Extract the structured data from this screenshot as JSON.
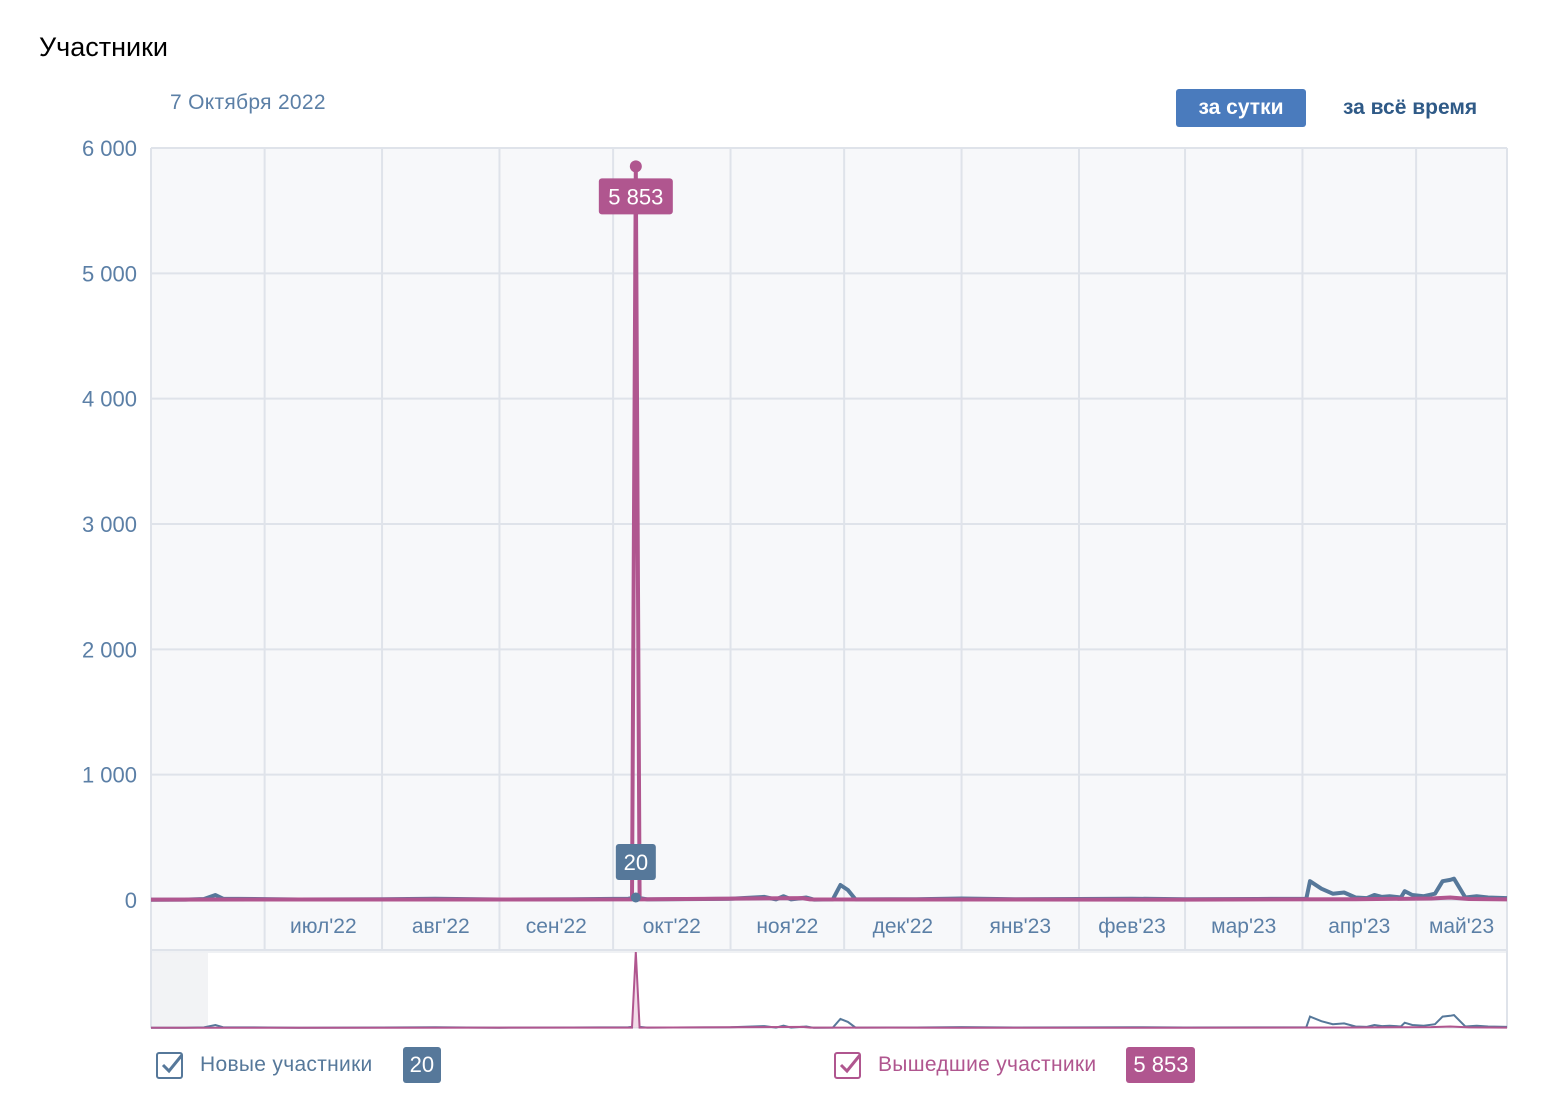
{
  "page": {
    "title": "Участники",
    "selected_date": "7 Октября 2022",
    "range_buttons": {
      "daily": "за сутки",
      "all_time": "за всё время"
    }
  },
  "legend": {
    "new_members": {
      "label": "Новые участники",
      "value": "20"
    },
    "left_members": {
      "label": "Вышедшие участники",
      "value": "5 853"
    }
  },
  "colors": {
    "new_members": "#56789a",
    "left_members": "#b0568f",
    "accent": "#4a7bbd",
    "tick_text": "#5b7fa6"
  },
  "chart_data": {
    "type": "line",
    "ylim": [
      0,
      6000
    ],
    "yticks": [
      0,
      1000,
      2000,
      3000,
      4000,
      5000,
      6000
    ],
    "ytick_labels": [
      "0",
      "1 000",
      "2 000",
      "3 000",
      "4 000",
      "5 000",
      "6 000"
    ],
    "x_range": [
      "2022-06-01",
      "2023-05-25"
    ],
    "month_ticks": [
      {
        "date": "2022-07-01",
        "label": "июл'22"
      },
      {
        "date": "2022-08-01",
        "label": "авг'22"
      },
      {
        "date": "2022-09-01",
        "label": "сен'22"
      },
      {
        "date": "2022-10-01",
        "label": "окт'22"
      },
      {
        "date": "2022-11-01",
        "label": "ноя'22"
      },
      {
        "date": "2022-12-01",
        "label": "дек'22"
      },
      {
        "date": "2023-01-01",
        "label": "янв'23"
      },
      {
        "date": "2023-02-01",
        "label": "фев'23"
      },
      {
        "date": "2023-03-01",
        "label": "мар'23"
      },
      {
        "date": "2023-04-01",
        "label": "апр'23"
      },
      {
        "date": "2023-05-01",
        "label": "май'23"
      }
    ],
    "highlight": {
      "date": "2022-10-07",
      "new_members": 20,
      "left_members": 5853,
      "new_label": "20",
      "left_label": "5 853"
    },
    "series": [
      {
        "name": "Новые участники",
        "points": [
          [
            "2022-06-01",
            2
          ],
          [
            "2022-06-10",
            3
          ],
          [
            "2022-06-15",
            8
          ],
          [
            "2022-06-18",
            40
          ],
          [
            "2022-06-20",
            10
          ],
          [
            "2022-07-10",
            4
          ],
          [
            "2022-08-01",
            6
          ],
          [
            "2022-08-15",
            10
          ],
          [
            "2022-09-01",
            4
          ],
          [
            "2022-09-20",
            6
          ],
          [
            "2022-10-05",
            10
          ],
          [
            "2022-10-07",
            20
          ],
          [
            "2022-10-10",
            5
          ],
          [
            "2022-10-25",
            8
          ],
          [
            "2022-11-01",
            10
          ],
          [
            "2022-11-10",
            25
          ],
          [
            "2022-11-13",
            5
          ],
          [
            "2022-11-15",
            30
          ],
          [
            "2022-11-17",
            5
          ],
          [
            "2022-11-21",
            20
          ],
          [
            "2022-11-23",
            3
          ],
          [
            "2022-11-28",
            5
          ],
          [
            "2022-11-30",
            120
          ],
          [
            "2022-12-02",
            80
          ],
          [
            "2022-12-04",
            5
          ],
          [
            "2022-12-20",
            6
          ],
          [
            "2023-01-01",
            12
          ],
          [
            "2023-01-15",
            6
          ],
          [
            "2023-02-01",
            8
          ],
          [
            "2023-02-15",
            10
          ],
          [
            "2023-03-01",
            6
          ],
          [
            "2023-03-20",
            8
          ],
          [
            "2023-04-02",
            10
          ],
          [
            "2023-04-03",
            150
          ],
          [
            "2023-04-06",
            90
          ],
          [
            "2023-04-09",
            50
          ],
          [
            "2023-04-12",
            60
          ],
          [
            "2023-04-15",
            20
          ],
          [
            "2023-04-18",
            15
          ],
          [
            "2023-04-20",
            40
          ],
          [
            "2023-04-22",
            25
          ],
          [
            "2023-04-24",
            30
          ],
          [
            "2023-04-27",
            20
          ],
          [
            "2023-04-28",
            70
          ],
          [
            "2023-04-30",
            40
          ],
          [
            "2023-05-03",
            30
          ],
          [
            "2023-05-06",
            50
          ],
          [
            "2023-05-08",
            150
          ],
          [
            "2023-05-10",
            160
          ],
          [
            "2023-05-11",
            170
          ],
          [
            "2023-05-14",
            20
          ],
          [
            "2023-05-17",
            30
          ],
          [
            "2023-05-20",
            20
          ],
          [
            "2023-05-25",
            15
          ]
        ]
      },
      {
        "name": "Вышедшие участники",
        "points": [
          [
            "2022-06-01",
            3
          ],
          [
            "2022-08-01",
            4
          ],
          [
            "2022-10-06",
            5
          ],
          [
            "2022-10-07",
            5853
          ],
          [
            "2022-10-08",
            5
          ],
          [
            "2022-11-20",
            15
          ],
          [
            "2022-11-22",
            5
          ],
          [
            "2023-01-01",
            4
          ],
          [
            "2023-03-01",
            3
          ],
          [
            "2023-04-15",
            6
          ],
          [
            "2023-05-05",
            12
          ],
          [
            "2023-05-10",
            20
          ],
          [
            "2023-05-15",
            8
          ],
          [
            "2023-05-25",
            5
          ]
        ]
      }
    ]
  }
}
